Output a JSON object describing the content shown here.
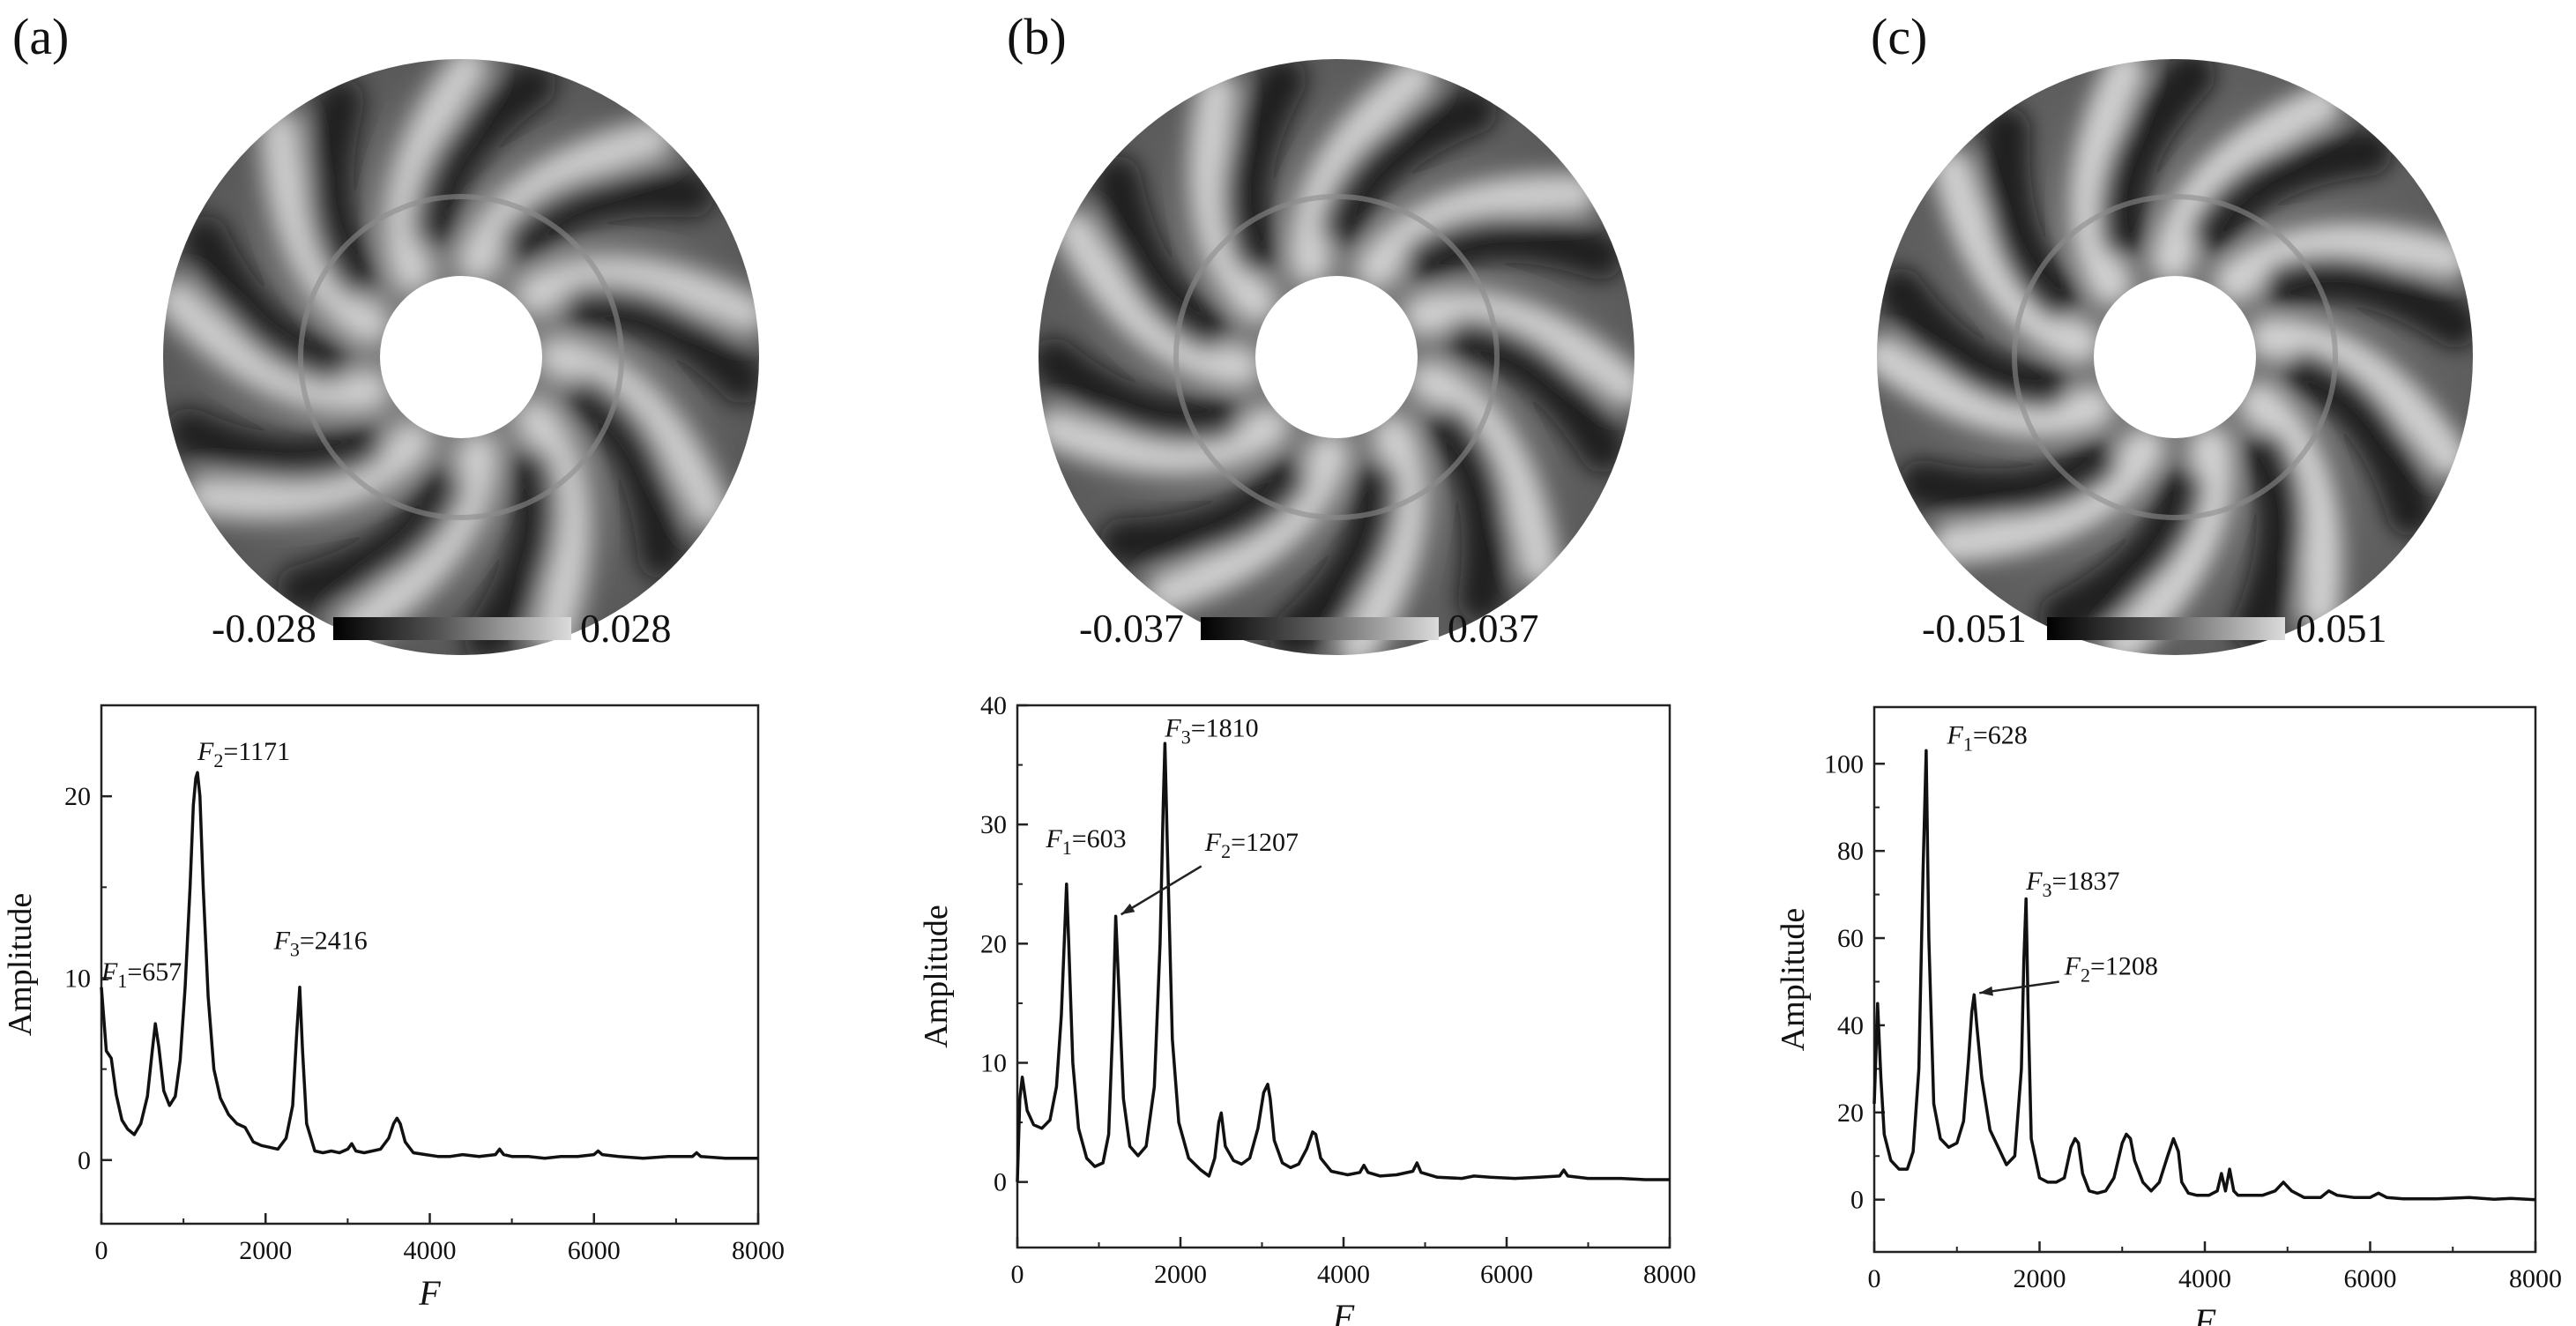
{
  "chart_data": [
    {
      "panel_label": "(a)",
      "type": "line",
      "xlabel": "F",
      "ylabel": "Amplitude",
      "xlim": [
        0,
        8000
      ],
      "ylim": [
        -3.5,
        25
      ],
      "xticks": [
        "0",
        "2000",
        "4000",
        "6000",
        "8000"
      ],
      "yticks": [
        "0",
        "10",
        "20"
      ],
      "yticks_values": [
        0,
        10,
        20
      ],
      "colorbar": {
        "min": "-0.028",
        "max": "0.028"
      },
      "annotations": [
        {
          "prefix": "F",
          "sub": "1",
          "text": "=657",
          "at": [
            0,
            9.5
          ]
        },
        {
          "prefix": "F",
          "sub": "2",
          "text": "=1171",
          "at": [
            1171,
            21.6
          ]
        },
        {
          "prefix": "F",
          "sub": "3",
          "text": "=2416",
          "at": [
            2100,
            11.2
          ]
        }
      ],
      "x": [
        0,
        60,
        120,
        180,
        250,
        320,
        400,
        480,
        560,
        620,
        657,
        700,
        760,
        830,
        900,
        960,
        1020,
        1080,
        1120,
        1150,
        1171,
        1200,
        1240,
        1300,
        1370,
        1450,
        1550,
        1650,
        1750,
        1850,
        1950,
        2050,
        2150,
        2250,
        2330,
        2380,
        2416,
        2450,
        2500,
        2600,
        2700,
        2800,
        2900,
        3000,
        3050,
        3100,
        3200,
        3300,
        3400,
        3500,
        3560,
        3600,
        3640,
        3700,
        3800,
        3950,
        4100,
        4250,
        4400,
        4600,
        4800,
        4850,
        4900,
        5000,
        5200,
        5400,
        5600,
        5800,
        6000,
        6050,
        6100,
        6300,
        6600,
        6900,
        7200,
        7250,
        7300,
        7600,
        8000
      ],
      "y": [
        9.5,
        6.0,
        5.6,
        3.6,
        2.2,
        1.7,
        1.4,
        2.0,
        3.5,
        6.0,
        7.5,
        6.2,
        3.8,
        3.0,
        3.5,
        5.5,
        9.5,
        15.0,
        19.5,
        21.0,
        21.3,
        20.0,
        15.0,
        9.0,
        5.0,
        3.4,
        2.5,
        2.0,
        1.8,
        1.0,
        0.8,
        0.7,
        0.6,
        1.2,
        3.0,
        7.0,
        9.5,
        6.0,
        2.0,
        0.5,
        0.4,
        0.5,
        0.4,
        0.6,
        0.9,
        0.5,
        0.4,
        0.5,
        0.6,
        1.2,
        2.0,
        2.3,
        2.0,
        1.0,
        0.4,
        0.3,
        0.2,
        0.2,
        0.3,
        0.2,
        0.3,
        0.6,
        0.3,
        0.2,
        0.2,
        0.1,
        0.2,
        0.2,
        0.3,
        0.5,
        0.3,
        0.2,
        0.1,
        0.2,
        0.2,
        0.4,
        0.2,
        0.1,
        0.1
      ]
    },
    {
      "panel_label": "(b)",
      "type": "line",
      "xlabel": "F",
      "ylabel": "Amplitude",
      "xlim": [
        0,
        8000
      ],
      "ylim": [
        -5.5,
        40
      ],
      "xticks": [
        "0",
        "2000",
        "4000",
        "6000",
        "8000"
      ],
      "yticks": [
        "0",
        "10",
        "20",
        "30",
        "40"
      ],
      "yticks_values": [
        0,
        10,
        20,
        30,
        40
      ],
      "colorbar": {
        "min": "-0.037",
        "max": "0.037"
      },
      "annotations": [
        {
          "prefix": "F",
          "sub": "1",
          "text": "=603",
          "at": [
            350,
            27.5
          ]
        },
        {
          "prefix": "F",
          "sub": "3",
          "text": "=1810",
          "at": [
            1810,
            36.8
          ]
        },
        {
          "prefix": "F",
          "sub": "2",
          "text": "=1207",
          "at": [
            2300,
            27.2
          ]
        }
      ],
      "x": [
        0,
        30,
        60,
        120,
        200,
        300,
        400,
        480,
        540,
        580,
        603,
        630,
        680,
        750,
        850,
        950,
        1050,
        1120,
        1170,
        1207,
        1240,
        1300,
        1380,
        1480,
        1580,
        1680,
        1750,
        1790,
        1810,
        1840,
        1900,
        1980,
        2100,
        2250,
        2350,
        2420,
        2470,
        2500,
        2550,
        2650,
        2750,
        2850,
        2950,
        3020,
        3070,
        3100,
        3150,
        3250,
        3350,
        3450,
        3550,
        3620,
        3660,
        3720,
        3850,
        4050,
        4200,
        4250,
        4300,
        4450,
        4650,
        4850,
        4900,
        4950,
        5150,
        5450,
        5600,
        5800,
        6100,
        6400,
        6650,
        6700,
        6750,
        7000,
        7400,
        7700,
        8000
      ],
      "y": [
        0.0,
        7.0,
        8.8,
        6.0,
        4.8,
        4.5,
        5.2,
        8.0,
        14.0,
        21.0,
        25.0,
        20.0,
        10.0,
        4.5,
        2.0,
        1.3,
        1.6,
        4.0,
        13.0,
        22.3,
        17.0,
        7.0,
        3.0,
        2.2,
        3.0,
        8.0,
        20.0,
        32.0,
        36.8,
        28.0,
        12.0,
        5.0,
        2.0,
        1.0,
        0.5,
        2.0,
        5.0,
        5.8,
        3.0,
        1.8,
        1.5,
        2.0,
        4.5,
        7.5,
        8.2,
        7.0,
        3.5,
        1.6,
        1.2,
        1.5,
        2.8,
        4.2,
        4.0,
        2.0,
        0.9,
        0.6,
        0.8,
        1.4,
        0.8,
        0.5,
        0.6,
        0.9,
        1.6,
        0.8,
        0.4,
        0.3,
        0.5,
        0.4,
        0.3,
        0.4,
        0.5,
        1.0,
        0.5,
        0.3,
        0.3,
        0.2,
        0.2
      ]
    },
    {
      "panel_label": "(c)",
      "type": "line",
      "xlabel": "F",
      "ylabel": "Amplitude",
      "xlim": [
        0,
        8000
      ],
      "ylim": [
        -12,
        113
      ],
      "xticks": [
        "0",
        "2000",
        "4000",
        "6000",
        "8000"
      ],
      "yticks": [
        "0",
        "20",
        "40",
        "60",
        "80",
        "100"
      ],
      "yticks_values": [
        0,
        20,
        40,
        60,
        80,
        100
      ],
      "colorbar": {
        "min": "-0.051",
        "max": "0.051"
      },
      "annotations": [
        {
          "prefix": "F",
          "sub": "1",
          "text": "=628",
          "at": [
            880,
            103
          ]
        },
        {
          "prefix": "F",
          "sub": "3",
          "text": "=1837",
          "at": [
            1837,
            69.5
          ]
        },
        {
          "prefix": "F",
          "sub": "2",
          "text": "=1208",
          "at": [
            2300,
            50
          ]
        }
      ],
      "x": [
        0,
        40,
        80,
        120,
        200,
        300,
        400,
        470,
        540,
        590,
        628,
        660,
        720,
        800,
        900,
        1000,
        1080,
        1140,
        1180,
        1208,
        1240,
        1300,
        1400,
        1500,
        1600,
        1700,
        1780,
        1810,
        1837,
        1860,
        1900,
        2000,
        2100,
        2200,
        2300,
        2380,
        2430,
        2470,
        2520,
        2600,
        2700,
        2800,
        2900,
        3000,
        3050,
        3100,
        3150,
        3250,
        3350,
        3450,
        3550,
        3620,
        3680,
        3720,
        3800,
        3900,
        4050,
        4150,
        4200,
        4250,
        4300,
        4350,
        4400,
        4500,
        4600,
        4700,
        4850,
        4950,
        5050,
        5200,
        5400,
        5500,
        5600,
        5800,
        6000,
        6100,
        6200,
        6400,
        6800,
        7200,
        7500,
        7700,
        8000
      ],
      "y": [
        22,
        45,
        28,
        15,
        9,
        7,
        7,
        11,
        30,
        75,
        103,
        60,
        22,
        14,
        12,
        13,
        18,
        32,
        43,
        47,
        40,
        28,
        16,
        12,
        8,
        10,
        30,
        55,
        69,
        45,
        14,
        5,
        4,
        4,
        5,
        12,
        14,
        13,
        6,
        2,
        1.5,
        2,
        5,
        13,
        15,
        14,
        9,
        4,
        2,
        4,
        10,
        14,
        11,
        4,
        1.5,
        1,
        1,
        2,
        6,
        2,
        7,
        2,
        1,
        1,
        1,
        1,
        2,
        4,
        2,
        0.5,
        0.5,
        2,
        1,
        0.5,
        0.5,
        1.5,
        0.5,
        0.2,
        0.2,
        0.5,
        0.1,
        0.3,
        0.0
      ]
    }
  ]
}
